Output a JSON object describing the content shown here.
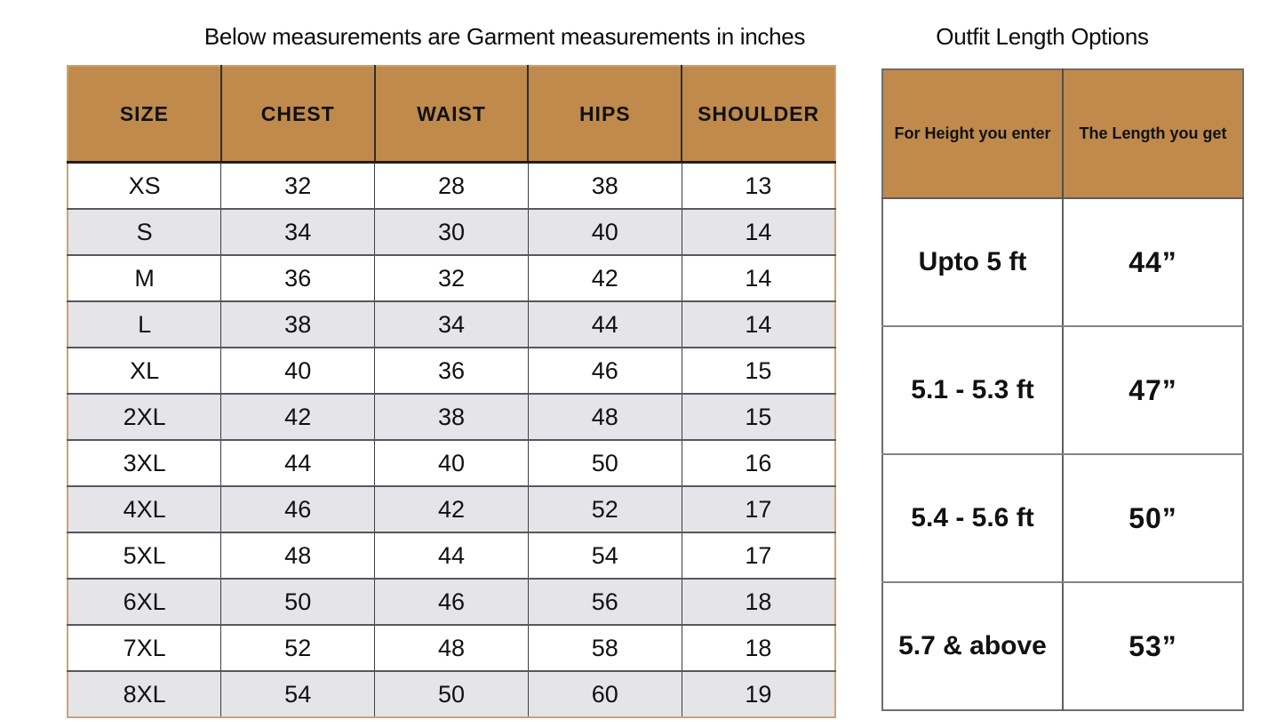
{
  "titles": {
    "garment": "Below measurements are Garment measurements in inches",
    "outfit": "Outfit Length Options"
  },
  "left_table": {
    "columns": [
      "SIZE",
      "CHEST",
      "WAIST",
      "HIPS",
      "SHOULDER"
    ],
    "rows": [
      [
        "XS",
        "32",
        "28",
        "38",
        "13"
      ],
      [
        "S",
        "34",
        "30",
        "40",
        "14"
      ],
      [
        "M",
        "36",
        "32",
        "42",
        "14"
      ],
      [
        "L",
        "38",
        "34",
        "44",
        "14"
      ],
      [
        "XL",
        "40",
        "36",
        "46",
        "15"
      ],
      [
        "2XL",
        "42",
        "38",
        "48",
        "15"
      ],
      [
        "3XL",
        "44",
        "40",
        "50",
        "16"
      ],
      [
        "4XL",
        "46",
        "42",
        "52",
        "17"
      ],
      [
        "5XL",
        "48",
        "44",
        "54",
        "17"
      ],
      [
        "6XL",
        "50",
        "46",
        "56",
        "18"
      ],
      [
        "7XL",
        "52",
        "48",
        "58",
        "18"
      ],
      [
        "8XL",
        "54",
        "50",
        "60",
        "19"
      ]
    ]
  },
  "right_table": {
    "columns": [
      "For Height you enter",
      "The Length you get"
    ],
    "rows": [
      [
        "Upto 5 ft",
        "44”"
      ],
      [
        "5.1 - 5.3 ft",
        "47”"
      ],
      [
        "5.4 - 5.6 ft",
        "50”"
      ],
      [
        "5.7 & above",
        "53”"
      ]
    ]
  },
  "colors": {
    "header_brown": "#bf8a4b",
    "alt_row_gray": "#e4e4e9",
    "garment_table_border_tan": "#cda36b",
    "outfit_table_border_gray": "#6e6e6e",
    "text": "#111111"
  }
}
